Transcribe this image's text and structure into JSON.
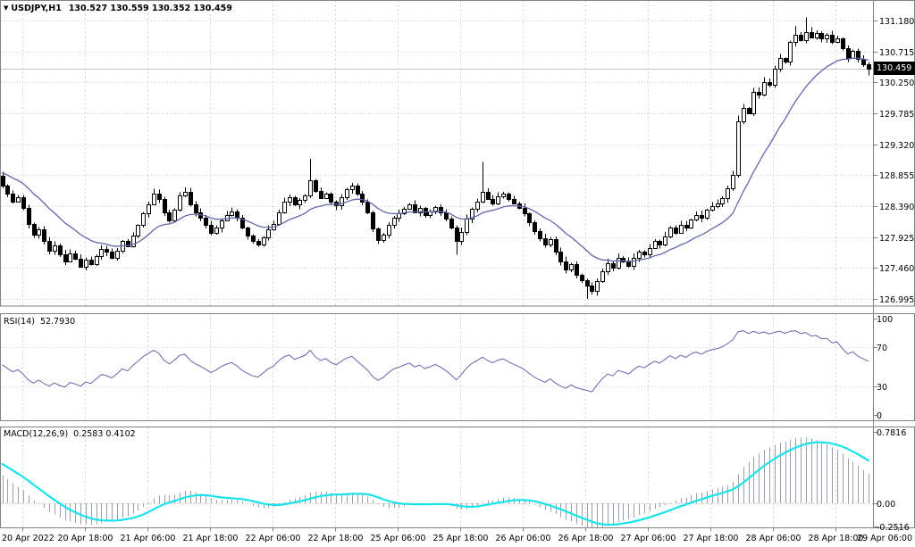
{
  "chart_data": {
    "type": "candlestick",
    "symbol_timeframe": "USDJPY,H1",
    "title_ohlc_text": "130.527 130.559 130.352 130.459",
    "current_candle": {
      "open": 130.527,
      "high": 130.559,
      "low": 130.352,
      "close": 130.459
    },
    "current_price_text": "130.459",
    "x_axis": {
      "labels": [
        "20 Apr 2022",
        "20 Apr 18:00",
        "21 Apr 06:00",
        "21 Apr 18:00",
        "22 Apr 06:00",
        "22 Apr 18:00",
        "25 Apr 06:00",
        "25 Apr 18:00",
        "26 Apr 06:00",
        "26 Apr 18:00",
        "27 Apr 06:00",
        "27 Apr 18:00",
        "28 Apr 06:00",
        "28 Apr 18:00",
        "29 Apr 06:00"
      ]
    },
    "price_axis": {
      "labels": [
        "131.180",
        "130.715",
        "130.250",
        "129.785",
        "129.320",
        "128.855",
        "128.390",
        "127.925",
        "127.460",
        "126.995"
      ],
      "max_label": 131.18,
      "min_label": 126.995
    },
    "candles": {
      "first_open": 128.84,
      "closes": [
        128.7,
        128.58,
        128.46,
        128.52,
        128.36,
        128.12,
        127.96,
        128.04,
        127.86,
        127.72,
        127.8,
        127.66,
        127.56,
        127.68,
        127.6,
        127.48,
        127.58,
        127.52,
        127.63,
        127.75,
        127.7,
        127.61,
        127.72,
        127.86,
        127.79,
        127.95,
        128.1,
        128.28,
        128.42,
        128.58,
        128.5,
        128.3,
        128.18,
        128.33,
        128.55,
        128.6,
        128.42,
        128.3,
        128.21,
        128.1,
        127.98,
        128.06,
        128.18,
        128.26,
        128.31,
        128.21,
        128.06,
        127.95,
        127.86,
        127.81,
        127.92,
        128.04,
        128.12,
        128.3,
        128.45,
        128.52,
        128.41,
        128.48,
        128.55,
        128.78,
        128.61,
        128.51,
        128.58,
        128.46,
        128.4,
        128.52,
        128.64,
        128.7,
        128.58,
        128.45,
        128.3,
        128.05,
        127.88,
        127.96,
        128.1,
        128.22,
        128.28,
        128.35,
        128.42,
        128.3,
        128.36,
        128.25,
        128.31,
        128.38,
        128.3,
        128.2,
        128.06,
        127.86,
        128.0,
        128.2,
        128.35,
        128.46,
        128.6,
        128.5,
        128.43,
        128.53,
        128.58,
        128.5,
        128.43,
        128.36,
        128.28,
        128.15,
        128.01,
        127.91,
        127.81,
        127.89,
        127.71,
        127.56,
        127.43,
        127.51,
        127.36,
        127.28,
        127.2,
        127.11,
        127.26,
        127.41,
        127.53,
        127.46,
        127.61,
        127.56,
        127.49,
        127.61,
        127.71,
        127.66,
        127.76,
        127.86,
        127.81,
        127.93,
        128.06,
        127.99,
        128.11,
        128.06,
        128.19,
        128.26,
        128.21,
        128.33,
        128.39,
        128.43,
        128.51,
        128.66,
        128.86,
        129.66,
        129.86,
        129.79,
        130.11,
        130.06,
        130.26,
        130.21,
        130.46,
        130.61,
        130.56,
        130.86,
        130.96,
        130.89,
        131.01,
        130.93,
        130.99,
        130.91,
        130.96,
        130.86,
        130.91,
        130.76,
        130.62,
        130.72,
        130.6,
        130.527,
        130.459
      ],
      "wick_overrides": {
        "16": {
          "l": 127.42
        },
        "59": {
          "h": 129.1
        },
        "87": {
          "l": 127.66
        },
        "92": {
          "h": 129.05
        },
        "112": {
          "l": 126.995
        },
        "141": {
          "h": 129.75,
          "l": 128.82
        },
        "152": {
          "h": 131.1
        },
        "154": {
          "h": 131.23
        },
        "166": {
          "h": 130.559,
          "l": 130.352
        }
      }
    },
    "indicators": {
      "ma": {
        "name": "MA",
        "period": 16,
        "init": 128.92,
        "color": "#6464ad"
      },
      "rsi": {
        "title": "RSI(14)",
        "value_text": "52.7930",
        "period": 14,
        "axis_labels": [
          "100",
          "70",
          "30",
          "0"
        ],
        "guide_levels": [
          70,
          30
        ],
        "color": "#6464ad",
        "init_avg_gain": 0.06,
        "init_avg_loss": 0.055
      },
      "macd": {
        "title": "MACD(12,26,9)",
        "values_text": "0.2583 0.4102",
        "fast": 12,
        "slow": 26,
        "signal": 9,
        "axis_labels": [
          "0.7816",
          "0.00",
          "-0.2516"
        ],
        "axis_values": [
          0.7816,
          0.0,
          -0.2516
        ],
        "histogram_color": "#98a0ac",
        "signal_color": "#18e2ea",
        "init_ema_fast": 128.88,
        "init_ema_slow": 128.53,
        "init_signal": 0.46
      }
    },
    "colors": {
      "background": "#ffffff",
      "grid": "#d0d0d0",
      "border": "#828282",
      "bull": "#ffffff",
      "bear": "#000000",
      "candle_outline": "#000000",
      "current_price_line": "#c6c6c6",
      "badge_bg": "#000000",
      "badge_text": "#ffffff",
      "text": "#000000"
    }
  }
}
